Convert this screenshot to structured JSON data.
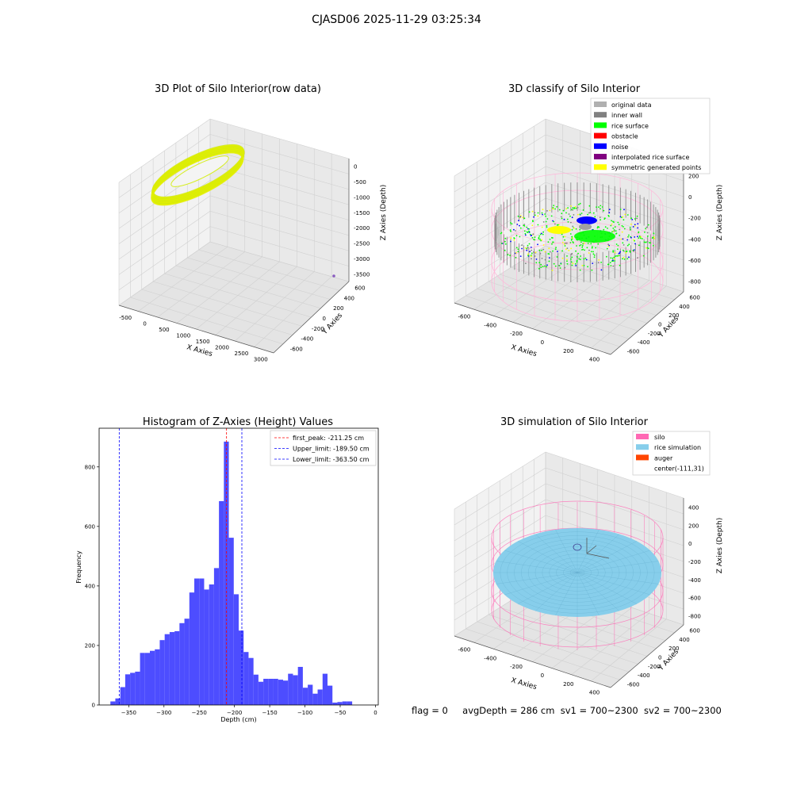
{
  "suptitle": "CJASD06 2025-11-29 03:25:34",
  "stats": {
    "flag": "flag = 0",
    "avg_depth": "avgDepth = 286 cm",
    "sv1": "sv1 = 700~2300",
    "sv2": "sv2 = 700~2300"
  },
  "colors": {
    "yellow": "#e5f000",
    "green": "#00ff00",
    "blue": "#0000ff",
    "gray": "#808080",
    "pink": "#ff69b4",
    "skyblue": "#87ceeb",
    "orange": "#ff4500",
    "hist_bar": "#4d4dff",
    "first_peak_line": "#ff0000",
    "limit_line": "#0000ff"
  },
  "chart_data": [
    {
      "type": "scatter",
      "projection": "3d",
      "title": "3D Plot of Silo Interior(row data)",
      "xlabel": "X Axies",
      "ylabel": "Y Axies",
      "zlabel": "Z Axies (Depth)",
      "xticks": [
        "-500",
        "0",
        "500",
        "1000",
        "1500",
        "2000",
        "2500",
        "3000"
      ],
      "yticks": [
        "-600",
        "-400",
        "-200",
        "0",
        "200",
        "400",
        "600"
      ],
      "zticks": [
        "0",
        "-500",
        "-1000",
        "-1500",
        "-2000",
        "-2500",
        "-3000",
        "-3500"
      ],
      "xlim": [
        -700,
        3000
      ],
      "ylim": [
        -700,
        700
      ],
      "zlim": [
        -3700,
        200
      ],
      "points": [
        {
          "x": -600,
          "y": 300,
          "z": -250
        },
        {
          "x": 3000,
          "y": -600,
          "z": -3500
        }
      ]
    },
    {
      "type": "scatter",
      "projection": "3d",
      "title": "3D classify of Silo Interior",
      "xlabel": "X Axies",
      "ylabel": "Y Axies",
      "zlabel": "Z Axies (Depth)",
      "xticks": [
        "-600",
        "-400",
        "-200",
        "0",
        "200",
        "400"
      ],
      "yticks": [
        "-600",
        "-400",
        "-200",
        "0",
        "200",
        "400",
        "600"
      ],
      "zticks": [
        "200",
        "0",
        "-200",
        "-400",
        "-600",
        "-800"
      ],
      "legend_position": "upper right",
      "legend": [
        {
          "label": "original data",
          "color": "#b0b0b0"
        },
        {
          "label": "inner wall",
          "color": "#808080"
        },
        {
          "label": "rice surface",
          "color": "#00ff00"
        },
        {
          "label": "obstacle",
          "color": "#ff0000"
        },
        {
          "label": "noise",
          "color": "#0000ff"
        },
        {
          "label": "interpolated rice surface",
          "color": "#800080"
        },
        {
          "label": "symmetric generated points",
          "color": "#ffff00"
        }
      ]
    },
    {
      "type": "bar",
      "title": "Histogram of Z-Axies (Height) Values",
      "xlabel": "Depth (cm)",
      "ylabel": "Frequency",
      "xlim": [
        -392,
        4
      ],
      "ylim": [
        0,
        930
      ],
      "xticks": [
        -350,
        -300,
        -250,
        -200,
        -150,
        -100,
        -50,
        0
      ],
      "yticks": [
        0,
        200,
        400,
        600,
        800
      ],
      "bin_width": 7,
      "bin_start": -376,
      "values": [
        12,
        22,
        60,
        103,
        108,
        112,
        175,
        175,
        182,
        187,
        218,
        238,
        245,
        248,
        275,
        290,
        378,
        425,
        425,
        388,
        405,
        460,
        685,
        885,
        562,
        372,
        250,
        178,
        158,
        102,
        78,
        88,
        88,
        88,
        85,
        82,
        105,
        100,
        128,
        58,
        68,
        38,
        52,
        105,
        65,
        8,
        10,
        12,
        12
      ],
      "legend_position": "upper right",
      "vlines": [
        {
          "label": "first_peak: -211.25 cm",
          "x": -211.25,
          "color": "#ff0000"
        },
        {
          "label": "Upper_limit: -189.50 cm",
          "x": -189.5,
          "color": "#0000ff"
        },
        {
          "label": "Lower_limit: -363.50 cm",
          "x": -363.5,
          "color": "#0000ff"
        }
      ]
    },
    {
      "type": "scatter",
      "projection": "3d",
      "title": "3D simulation of Silo Interior",
      "xlabel": "X Axies",
      "ylabel": "Y Axies",
      "zlabel": "Z Axies (Depth)",
      "xticks": [
        "-600",
        "-400",
        "-200",
        "0",
        "200",
        "400"
      ],
      "yticks": [
        "-600",
        "-400",
        "-200",
        "0",
        "200",
        "400",
        "600"
      ],
      "zticks": [
        "400",
        "200",
        "0",
        "-200",
        "-400",
        "-600",
        "-800"
      ],
      "legend_position": "upper right",
      "legend": [
        {
          "label": "silo",
          "color": "#ff69b4"
        },
        {
          "label": "rice simulation",
          "color": "#87ceeb"
        },
        {
          "label": "auger",
          "color": "#ff4500"
        },
        {
          "label": "center(-111,31)",
          "color": ""
        }
      ]
    }
  ]
}
